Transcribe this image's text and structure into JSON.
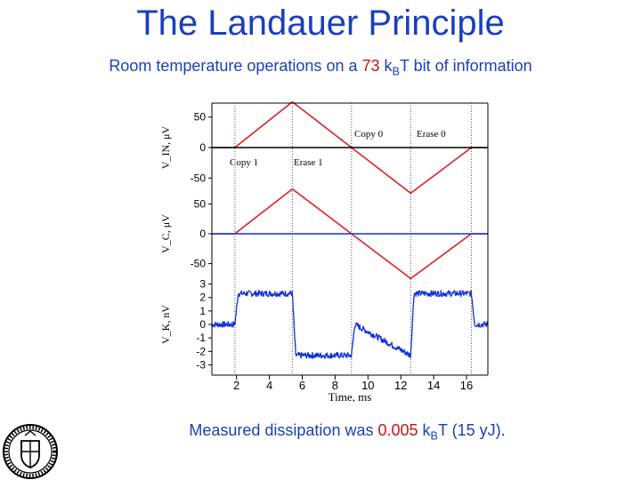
{
  "slide": {
    "title": "The Landauer Principle",
    "subtitle": {
      "pre": "Room temperature operations on a ",
      "value": "73",
      "mid": " k",
      "sub": "B",
      "post": "T bit of information"
    },
    "caption": {
      "pre": "Measured dissipation was ",
      "value": "0.005",
      "mid": " k",
      "sub": "B",
      "post": "T (15 yJ)."
    }
  },
  "colors": {
    "title": "#1a3fbf",
    "highlight": "#d01010",
    "red_trace": "#e02020",
    "blue_trace": "#1030e0"
  },
  "chart_data": {
    "type": "line",
    "xlabel": "Time, ms",
    "x_ticks": [
      2,
      4,
      6,
      8,
      10,
      12,
      14,
      16
    ],
    "xlim": [
      0.5,
      17.3
    ],
    "markers_ms": [
      1.9,
      5.4,
      9.0,
      12.6,
      16.3
    ],
    "panels": [
      {
        "ylabel": "V_IN, μV",
        "ylim": [
          -70,
          70
        ],
        "y_ticks": [
          "50",
          "0",
          "-50"
        ],
        "y_tick_values": [
          50,
          0,
          -50
        ],
        "annotations": [
          "Copy 1",
          "Erase 1",
          "Copy 0",
          "Erase 0"
        ],
        "series": [
          {
            "color": "#e02020",
            "x": [
              0.5,
              1.9,
              5.4,
              9.0,
              12.6,
              16.3,
              17.3
            ],
            "y": [
              0,
              0,
              75,
              0,
              -75,
              0,
              0
            ]
          },
          {
            "color": "#000000",
            "x": [
              0.5,
              17.3
            ],
            "y": [
              0,
              0
            ]
          }
        ]
      },
      {
        "ylabel": "V_C, μV",
        "ylim": [
          -70,
          70
        ],
        "y_ticks": [
          "50",
          "0",
          "-50"
        ],
        "y_tick_values": [
          50,
          0,
          -50
        ],
        "series": [
          {
            "color": "#e02020",
            "x": [
              0.5,
              1.9,
              5.4,
              9.0,
              12.6,
              16.3,
              17.3
            ],
            "y": [
              0,
              0,
              75,
              0,
              -75,
              0,
              0
            ]
          },
          {
            "color": "#1030e0",
            "x": [
              0.5,
              17.3
            ],
            "y": [
              0,
              0
            ]
          }
        ]
      },
      {
        "ylabel": "V_K, nV",
        "ylim": [
          -3.5,
          3.5
        ],
        "y_ticks": [
          "3",
          "2",
          "1",
          "0",
          "-1",
          "-2",
          "-3"
        ],
        "y_tick_values": [
          3,
          2,
          1,
          0,
          -1,
          -2,
          -3
        ],
        "series": [
          {
            "color": "#1030e0",
            "x": [
              0.5,
              1.9,
              2.1,
              5.4,
              5.6,
              9.0,
              9.2,
              12.6,
              12.8,
              16.3,
              16.5,
              17.3
            ],
            "y": [
              0,
              0,
              2.3,
              2.3,
              -2.3,
              -2.3,
              0,
              -2.3,
              2.3,
              2.3,
              0,
              0
            ]
          }
        ]
      }
    ]
  }
}
